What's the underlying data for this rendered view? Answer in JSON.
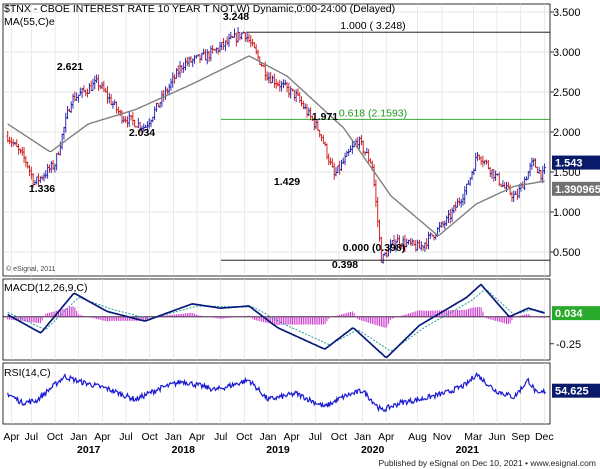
{
  "chart_data": {
    "type": "line",
    "title": "$TNX - CBOE INTEREST RATE 10 YEAR T NOT,W) Dynamic,0:00-24:00 (Delayed)",
    "indicator_label": "MA(55,C)e",
    "watermark": "© eSignal, 2011",
    "footer": "Published by eSignal on Dec 10, 2021  •  www.esignal.com",
    "colors": {
      "up_candle": "#1a1aaa",
      "down_candle": "#cc1111",
      "ma": "#808080",
      "fib_line": "#1a9a1a",
      "macd": "#0a1a7a",
      "signal": "#2a9a9a",
      "histogram": "#cc33cc",
      "rsi": "#1a1ad0",
      "last_price_box": "#0a1a6a",
      "ma_box": "#707070",
      "macd_box": "#2aaa2a"
    },
    "price_panel": {
      "ylim": [
        0.2,
        3.6
      ],
      "yticks": [
        "3.500",
        "3.000",
        "2.500",
        "2.000",
        "1.500",
        "1.000",
        "0.500"
      ],
      "last_price": "1.543",
      "ma_last": "1.390965",
      "annotations": [
        "1.336",
        "2.621",
        "2.034",
        "3.248",
        "1.971",
        "1.429",
        "0.000 (0.398)",
        "0.398"
      ],
      "fib_levels": [
        {
          "label": "1.000 ( 3.248)",
          "value": 3.248
        },
        {
          "label": "0.618 (2.1593)",
          "value": 2.159
        },
        {
          "label": "0.000 (0.398)",
          "value": 0.398
        }
      ],
      "price_series": [
        {
          "t": 2016.25,
          "v": 1.95
        },
        {
          "t": 2016.45,
          "v": 1.62
        },
        {
          "t": 2016.53,
          "v": 1.36
        },
        {
          "t": 2016.75,
          "v": 1.6
        },
        {
          "t": 2016.92,
          "v": 2.4
        },
        {
          "t": 2017.2,
          "v": 2.62
        },
        {
          "t": 2017.45,
          "v": 2.2
        },
        {
          "t": 2017.7,
          "v": 2.06
        },
        {
          "t": 2018.1,
          "v": 2.85
        },
        {
          "t": 2018.35,
          "v": 2.95
        },
        {
          "t": 2018.75,
          "v": 3.25
        },
        {
          "t": 2019.0,
          "v": 2.7
        },
        {
          "t": 2019.3,
          "v": 2.45
        },
        {
          "t": 2019.55,
          "v": 2.0
        },
        {
          "t": 2019.7,
          "v": 1.45
        },
        {
          "t": 2019.95,
          "v": 1.9
        },
        {
          "t": 2020.1,
          "v": 1.6
        },
        {
          "t": 2020.2,
          "v": 0.4
        },
        {
          "t": 2020.35,
          "v": 0.65
        },
        {
          "t": 2020.6,
          "v": 0.55
        },
        {
          "t": 2020.9,
          "v": 0.9
        },
        {
          "t": 2021.1,
          "v": 1.3
        },
        {
          "t": 2021.22,
          "v": 1.74
        },
        {
          "t": 2021.5,
          "v": 1.3
        },
        {
          "t": 2021.62,
          "v": 1.18
        },
        {
          "t": 2021.8,
          "v": 1.62
        },
        {
          "t": 2021.9,
          "v": 1.45
        },
        {
          "t": 2021.94,
          "v": 1.54
        }
      ],
      "ma_series": [
        {
          "t": 2016.25,
          "v": 2.1
        },
        {
          "t": 2016.7,
          "v": 1.75
        },
        {
          "t": 2017.1,
          "v": 2.1
        },
        {
          "t": 2017.6,
          "v": 2.28
        },
        {
          "t": 2018.2,
          "v": 2.6
        },
        {
          "t": 2018.8,
          "v": 2.95
        },
        {
          "t": 2019.2,
          "v": 2.7
        },
        {
          "t": 2019.8,
          "v": 2.05
        },
        {
          "t": 2020.3,
          "v": 1.2
        },
        {
          "t": 2020.8,
          "v": 0.7
        },
        {
          "t": 2021.2,
          "v": 1.1
        },
        {
          "t": 2021.6,
          "v": 1.32
        },
        {
          "t": 2021.94,
          "v": 1.39
        }
      ]
    },
    "macd_panel": {
      "label": "MACD(12,26,9,C)",
      "ylim": [
        -0.4,
        0.35
      ],
      "yticks": [
        "-0.25"
      ],
      "last_value": "0.034",
      "macd_series": [
        {
          "t": 2016.25,
          "v": 0.02
        },
        {
          "t": 2016.6,
          "v": -0.15
        },
        {
          "t": 2016.95,
          "v": 0.22
        },
        {
          "t": 2017.3,
          "v": 0.05
        },
        {
          "t": 2017.7,
          "v": -0.04
        },
        {
          "t": 2018.2,
          "v": 0.12
        },
        {
          "t": 2018.5,
          "v": 0.08
        },
        {
          "t": 2018.8,
          "v": 0.1
        },
        {
          "t": 2019.1,
          "v": -0.1
        },
        {
          "t": 2019.6,
          "v": -0.3
        },
        {
          "t": 2019.9,
          "v": -0.1
        },
        {
          "t": 2020.25,
          "v": -0.38
        },
        {
          "t": 2020.6,
          "v": -0.08
        },
        {
          "t": 2021.1,
          "v": 0.18
        },
        {
          "t": 2021.25,
          "v": 0.3
        },
        {
          "t": 2021.55,
          "v": 0.0
        },
        {
          "t": 2021.75,
          "v": 0.08
        },
        {
          "t": 2021.94,
          "v": 0.03
        }
      ],
      "signal_series": [
        {
          "t": 2016.25,
          "v": 0.04
        },
        {
          "t": 2016.65,
          "v": -0.12
        },
        {
          "t": 2017.0,
          "v": 0.18
        },
        {
          "t": 2017.35,
          "v": 0.07
        },
        {
          "t": 2017.75,
          "v": -0.02
        },
        {
          "t": 2018.25,
          "v": 0.1
        },
        {
          "t": 2018.85,
          "v": 0.09
        },
        {
          "t": 2019.15,
          "v": -0.06
        },
        {
          "t": 2019.65,
          "v": -0.26
        },
        {
          "t": 2019.95,
          "v": -0.12
        },
        {
          "t": 2020.3,
          "v": -0.32
        },
        {
          "t": 2020.65,
          "v": -0.1
        },
        {
          "t": 2021.15,
          "v": 0.15
        },
        {
          "t": 2021.3,
          "v": 0.26
        },
        {
          "t": 2021.6,
          "v": 0.02
        },
        {
          "t": 2021.8,
          "v": 0.07
        },
        {
          "t": 2021.94,
          "v": 0.04
        }
      ]
    },
    "rsi_panel": {
      "label": "RSI(14,C)",
      "ylim": [
        0,
        100
      ],
      "last_value": "54.625",
      "rsi_series": [
        {
          "t": 2016.25,
          "v": 50
        },
        {
          "t": 2016.4,
          "v": 35
        },
        {
          "t": 2016.55,
          "v": 38
        },
        {
          "t": 2016.85,
          "v": 78
        },
        {
          "t": 2017.0,
          "v": 70
        },
        {
          "t": 2017.3,
          "v": 58
        },
        {
          "t": 2017.6,
          "v": 40
        },
        {
          "t": 2017.85,
          "v": 58
        },
        {
          "t": 2018.1,
          "v": 70
        },
        {
          "t": 2018.45,
          "v": 56
        },
        {
          "t": 2018.8,
          "v": 72
        },
        {
          "t": 2019.0,
          "v": 40
        },
        {
          "t": 2019.3,
          "v": 50
        },
        {
          "t": 2019.6,
          "v": 28
        },
        {
          "t": 2019.8,
          "v": 45
        },
        {
          "t": 2020.0,
          "v": 55
        },
        {
          "t": 2020.2,
          "v": 22
        },
        {
          "t": 2020.4,
          "v": 35
        },
        {
          "t": 2020.6,
          "v": 40
        },
        {
          "t": 2020.9,
          "v": 52
        },
        {
          "t": 2021.1,
          "v": 65
        },
        {
          "t": 2021.2,
          "v": 82
        },
        {
          "t": 2021.4,
          "v": 55
        },
        {
          "t": 2021.6,
          "v": 44
        },
        {
          "t": 2021.75,
          "v": 72
        },
        {
          "t": 2021.85,
          "v": 48
        },
        {
          "t": 2021.94,
          "v": 55
        }
      ]
    },
    "x_axis": {
      "xlim": [
        2016.2,
        2021.98
      ],
      "ticks": [
        {
          "label": "Apr",
          "t": 2016.29
        },
        {
          "label": "Jul",
          "t": 2016.5
        },
        {
          "label": "Oct",
          "t": 2016.75
        },
        {
          "label": "Jan",
          "t": 2017.0
        },
        {
          "label": "Apr",
          "t": 2017.25
        },
        {
          "label": "Jul",
          "t": 2017.5
        },
        {
          "label": "Oct",
          "t": 2017.75
        },
        {
          "label": "Jan",
          "t": 2018.0
        },
        {
          "label": "Apr",
          "t": 2018.25
        },
        {
          "label": "Jul",
          "t": 2018.5
        },
        {
          "label": "Oct",
          "t": 2018.75
        },
        {
          "label": "Jan",
          "t": 2019.0
        },
        {
          "label": "Apr",
          "t": 2019.25
        },
        {
          "label": "Jul",
          "t": 2019.5
        },
        {
          "label": "Oct",
          "t": 2019.75
        },
        {
          "label": "Jan",
          "t": 2020.0
        },
        {
          "label": "Apr",
          "t": 2020.25
        },
        {
          "label": "Aug",
          "t": 2020.58
        },
        {
          "label": "Nov",
          "t": 2020.84
        },
        {
          "label": "Mar",
          "t": 2021.17
        },
        {
          "label": "Jun",
          "t": 2021.42
        },
        {
          "label": "Sep",
          "t": 2021.67
        },
        {
          "label": "Dec",
          "t": 2021.92
        }
      ],
      "years": [
        {
          "label": "2017",
          "t": 2017.0
        },
        {
          "label": "2018",
          "t": 2018.0
        },
        {
          "label": "2019",
          "t": 2019.0
        },
        {
          "label": "2020",
          "t": 2020.0
        },
        {
          "label": "2021",
          "t": 2021.0
        }
      ]
    }
  }
}
